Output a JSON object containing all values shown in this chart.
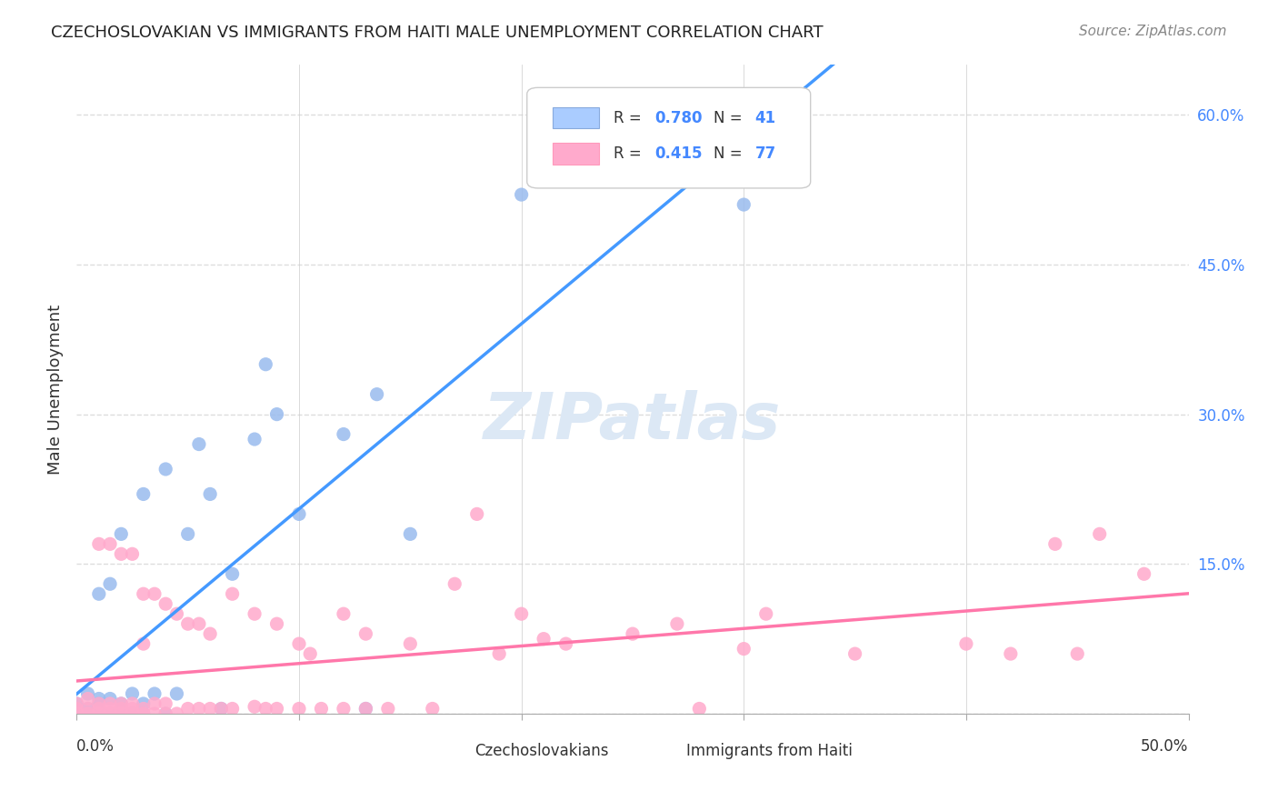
{
  "title": "CZECHOSLOVAKIAN VS IMMIGRANTS FROM HAITI MALE UNEMPLOYMENT CORRELATION CHART",
  "source": "Source: ZipAtlas.com",
  "ylabel": "Male Unemployment",
  "xlim": [
    0.0,
    0.5
  ],
  "ylim": [
    0.0,
    0.65
  ],
  "yticks": [
    0.0,
    0.15,
    0.3,
    0.45,
    0.6
  ],
  "ytick_labels": [
    "",
    "15.0%",
    "30.0%",
    "45.0%",
    "60.0%"
  ],
  "background_color": "#ffffff",
  "plot_bg_color": "#ffffff",
  "grid_color": "#dddddd",
  "watermark": "ZIPatlas",
  "series": [
    {
      "name": "Czechoslovakians",
      "R": "0.780",
      "N": "41",
      "line_color": "#4499ff",
      "scatter_color": "#99bbee",
      "face1": "#aaccff",
      "x": [
        0.0,
        0.0,
        0.0,
        0.005,
        0.005,
        0.005,
        0.01,
        0.01,
        0.01,
        0.01,
        0.01,
        0.015,
        0.015,
        0.015,
        0.02,
        0.02,
        0.02,
        0.025,
        0.025,
        0.03,
        0.03,
        0.03,
        0.035,
        0.04,
        0.04,
        0.045,
        0.05,
        0.055,
        0.06,
        0.065,
        0.07,
        0.08,
        0.085,
        0.09,
        0.1,
        0.12,
        0.13,
        0.135,
        0.15,
        0.2,
        0.3
      ],
      "y": [
        0.0,
        0.005,
        0.01,
        0.0,
        0.005,
        0.02,
        0.0,
        0.005,
        0.01,
        0.015,
        0.12,
        0.0,
        0.015,
        0.13,
        0.0,
        0.01,
        0.18,
        0.0,
        0.02,
        0.0,
        0.01,
        0.22,
        0.02,
        0.0,
        0.245,
        0.02,
        0.18,
        0.27,
        0.22,
        0.005,
        0.14,
        0.275,
        0.35,
        0.3,
        0.2,
        0.28,
        0.005,
        0.32,
        0.18,
        0.52,
        0.51
      ]
    },
    {
      "name": "Immigrants from Haiti",
      "R": "0.415",
      "N": "77",
      "line_color": "#ff77aa",
      "scatter_color": "#ffaacc",
      "face1": "#ffaacc",
      "x": [
        0.0,
        0.0,
        0.0,
        0.005,
        0.005,
        0.005,
        0.01,
        0.01,
        0.01,
        0.01,
        0.015,
        0.015,
        0.015,
        0.015,
        0.02,
        0.02,
        0.02,
        0.02,
        0.025,
        0.025,
        0.025,
        0.025,
        0.03,
        0.03,
        0.03,
        0.03,
        0.035,
        0.035,
        0.035,
        0.04,
        0.04,
        0.04,
        0.045,
        0.045,
        0.05,
        0.05,
        0.055,
        0.055,
        0.06,
        0.06,
        0.065,
        0.07,
        0.07,
        0.08,
        0.08,
        0.085,
        0.09,
        0.09,
        0.1,
        0.1,
        0.105,
        0.11,
        0.12,
        0.12,
        0.13,
        0.13,
        0.14,
        0.15,
        0.16,
        0.17,
        0.18,
        0.19,
        0.2,
        0.21,
        0.22,
        0.25,
        0.27,
        0.28,
        0.3,
        0.31,
        0.35,
        0.4,
        0.42,
        0.44,
        0.45,
        0.46,
        0.48
      ],
      "y": [
        0.0,
        0.005,
        0.01,
        0.0,
        0.005,
        0.015,
        0.0,
        0.005,
        0.01,
        0.17,
        0.0,
        0.005,
        0.01,
        0.17,
        0.0,
        0.005,
        0.01,
        0.16,
        0.0,
        0.005,
        0.01,
        0.16,
        0.0,
        0.005,
        0.07,
        0.12,
        0.0,
        0.01,
        0.12,
        0.0,
        0.01,
        0.11,
        0.0,
        0.1,
        0.005,
        0.09,
        0.005,
        0.09,
        0.005,
        0.08,
        0.005,
        0.005,
        0.12,
        0.007,
        0.1,
        0.005,
        0.005,
        0.09,
        0.005,
        0.07,
        0.06,
        0.005,
        0.005,
        0.1,
        0.005,
        0.08,
        0.005,
        0.07,
        0.005,
        0.13,
        0.2,
        0.06,
        0.1,
        0.075,
        0.07,
        0.08,
        0.09,
        0.005,
        0.065,
        0.1,
        0.06,
        0.07,
        0.06,
        0.17,
        0.06,
        0.18,
        0.14
      ]
    }
  ],
  "legend_color": "#4488ff",
  "bottom_legend": [
    "Czechoslovakians",
    "Immigrants from Haiti"
  ]
}
